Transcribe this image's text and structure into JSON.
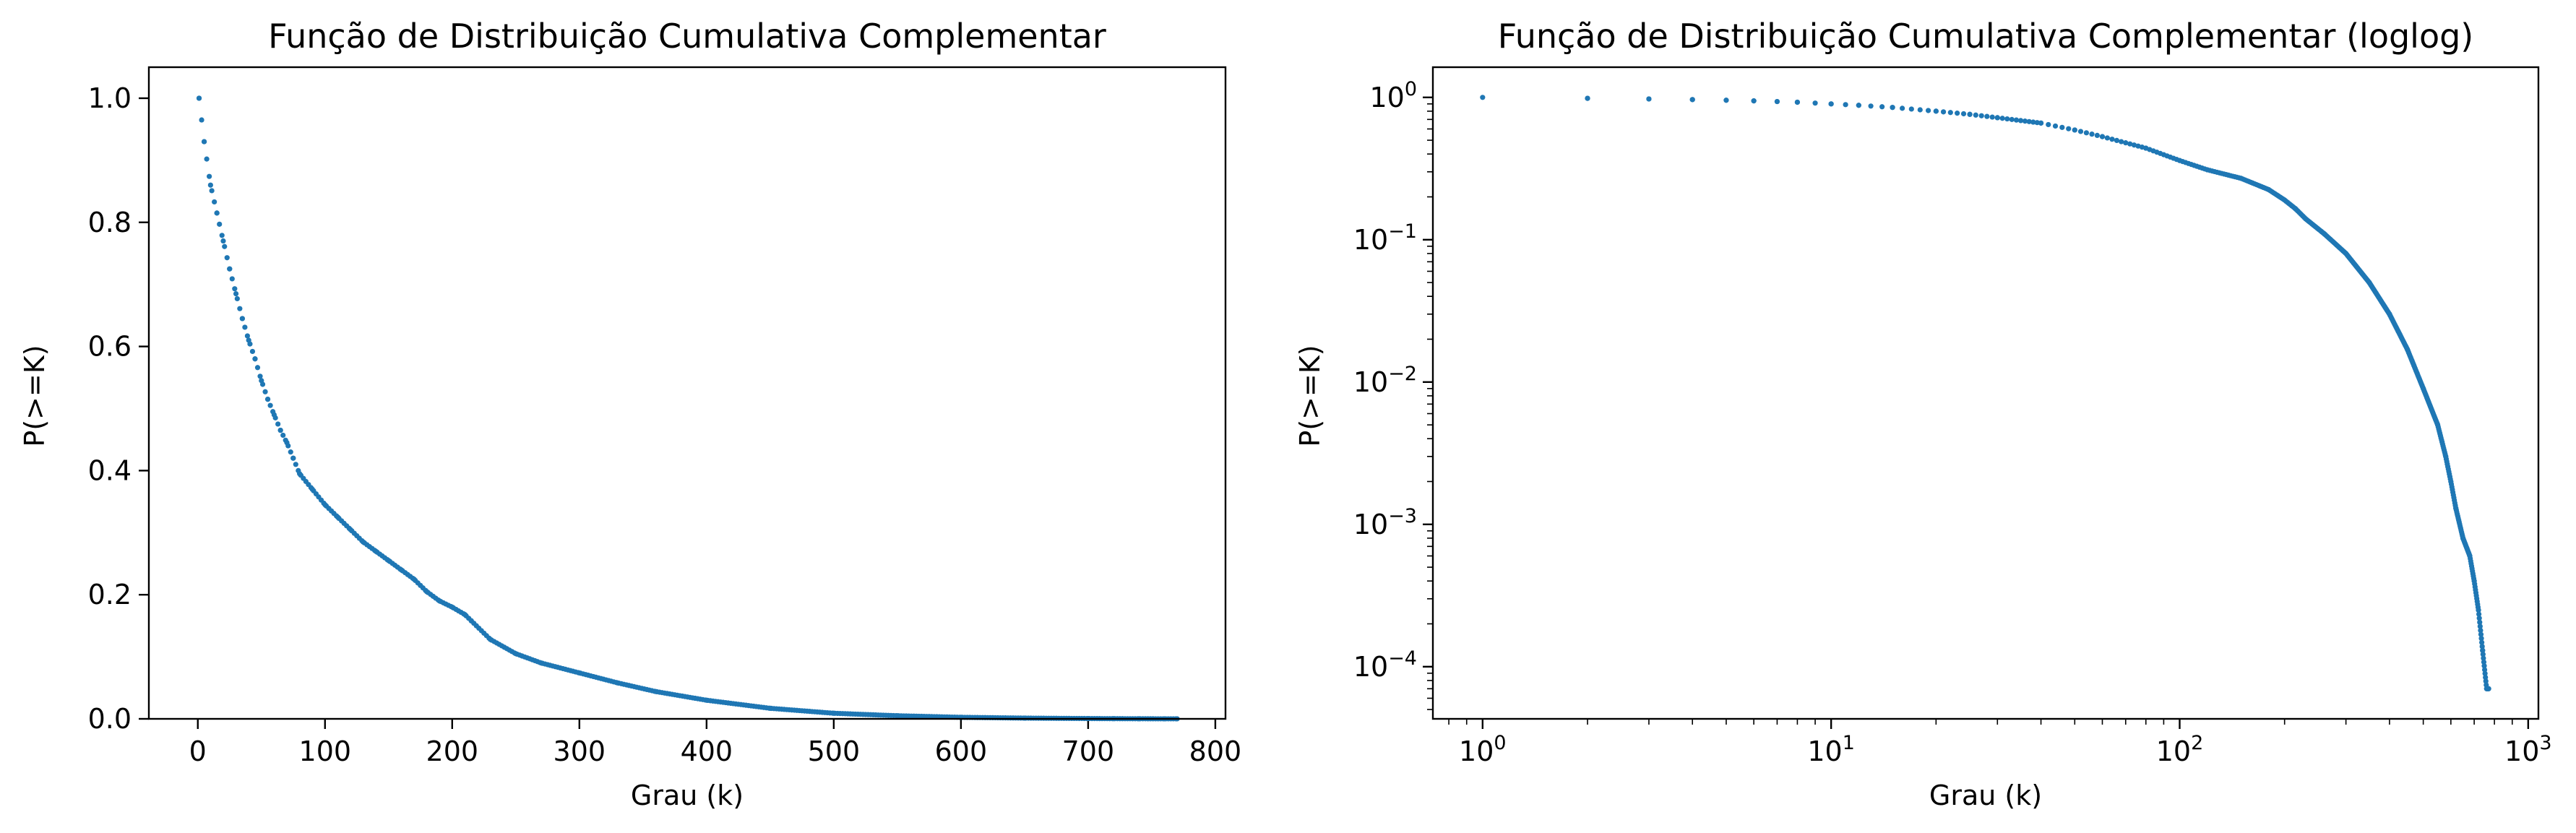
{
  "colors": {
    "series": "#1f77b4",
    "axes": "#000000",
    "background": "#ffffff"
  },
  "chart_data": [
    {
      "type": "scatter",
      "title": "Função de Distribuição Cumulativa Complementar",
      "xlabel": "Grau (k)",
      "ylabel": "P(>=K)",
      "xscale": "linear",
      "yscale": "linear",
      "xlim": [
        -38.5,
        808
      ],
      "ylim": [
        0,
        1.05
      ],
      "xticks": [
        0,
        100,
        200,
        300,
        400,
        500,
        600,
        700,
        800
      ],
      "xtick_labels": [
        "0",
        "100",
        "200",
        "300",
        "400",
        "500",
        "600",
        "700",
        "800"
      ],
      "yticks": [
        0,
        0.2,
        0.4,
        0.6,
        0.8,
        1.0
      ],
      "ytick_labels": [
        "0.0",
        "0.2",
        "0.4",
        "0.6",
        "0.8",
        "1.0"
      ],
      "grid": false,
      "series": [
        {
          "x": [
            1,
            5,
            10,
            15,
            20,
            25,
            30,
            35,
            40,
            45,
            50,
            55,
            60,
            65,
            70,
            75,
            80,
            90,
            100,
            110,
            120,
            130,
            140,
            150,
            160,
            170,
            180,
            190,
            200,
            210,
            215,
            230,
            250,
            270,
            300,
            330,
            360,
            400,
            450,
            500,
            550,
            600,
            650,
            700,
            720,
            740,
            760,
            770
          ],
          "y": [
            1.0,
            0.93,
            0.86,
            0.815,
            0.77,
            0.725,
            0.685,
            0.645,
            0.61,
            0.58,
            0.545,
            0.515,
            0.49,
            0.465,
            0.445,
            0.42,
            0.395,
            0.37,
            0.345,
            0.325,
            0.305,
            0.285,
            0.27,
            0.255,
            0.24,
            0.225,
            0.205,
            0.19,
            0.18,
            0.168,
            0.158,
            0.128,
            0.105,
            0.09,
            0.074,
            0.058,
            0.044,
            0.03,
            0.017,
            0.009,
            0.005,
            0.0025,
            0.0012,
            0.0005,
            0.0003,
            0.00015,
            7e-05,
            7e-05
          ]
        }
      ]
    },
    {
      "type": "scatter",
      "title": "Função de Distribuição Cumulativa Complementar (loglog)",
      "xlabel": "Grau (k)",
      "ylabel": "P(>=K)",
      "xscale": "log",
      "yscale": "log",
      "xlim": [
        0.72,
        1070
      ],
      "ylim": [
        4.3e-05,
        1.63
      ],
      "xticks": [
        1,
        10,
        100,
        1000
      ],
      "xtick_labels": [
        [
          "10",
          "0"
        ],
        [
          "10",
          "1"
        ],
        [
          "10",
          "2"
        ],
        [
          "10",
          "3"
        ]
      ],
      "yticks": [
        0.0001,
        0.001,
        0.01,
        0.1,
        1
      ],
      "ytick_labels": [
        [
          "10",
          "−4"
        ],
        [
          "10",
          "−3"
        ],
        [
          "10",
          "−2"
        ],
        [
          "10",
          "−1"
        ],
        [
          "10",
          "0"
        ]
      ],
      "grid": false,
      "series": [
        {
          "x": [
            1,
            2,
            3,
            4,
            5,
            6,
            7,
            8,
            10,
            12,
            15,
            20,
            25,
            30,
            40,
            50,
            60,
            80,
            100,
            120,
            150,
            180,
            200,
            215,
            230,
            260,
            300,
            350,
            400,
            450,
            500,
            550,
            580,
            600,
            620,
            650,
            680,
            700,
            720,
            740,
            760,
            770
          ],
          "y": [
            1.0,
            0.985,
            0.975,
            0.965,
            0.955,
            0.945,
            0.935,
            0.925,
            0.9,
            0.88,
            0.85,
            0.8,
            0.76,
            0.72,
            0.66,
            0.59,
            0.53,
            0.44,
            0.36,
            0.31,
            0.27,
            0.225,
            0.19,
            0.165,
            0.14,
            0.11,
            0.08,
            0.05,
            0.03,
            0.017,
            0.009,
            0.005,
            0.003,
            0.002,
            0.0013,
            0.0008,
            0.0006,
            0.0004,
            0.00025,
            0.00013,
            7e-05,
            7e-05
          ]
        }
      ]
    }
  ]
}
